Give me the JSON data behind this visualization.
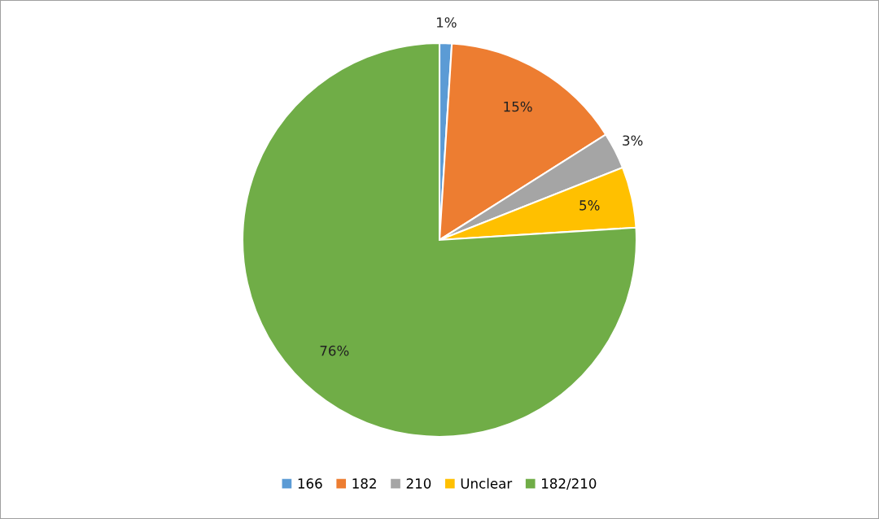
{
  "chart_data": {
    "type": "pie",
    "categories": [
      "166",
      "182",
      "210",
      "Unclear",
      "182/210"
    ],
    "values": [
      1,
      15,
      3,
      5,
      76
    ],
    "colors": [
      "#5b9bd5",
      "#ed7d31",
      "#a5a5a5",
      "#ffc000",
      "#70ad47"
    ],
    "value_labels": [
      "1%",
      "15%",
      "3%",
      "5%",
      "76%"
    ],
    "legend": "bottom"
  }
}
